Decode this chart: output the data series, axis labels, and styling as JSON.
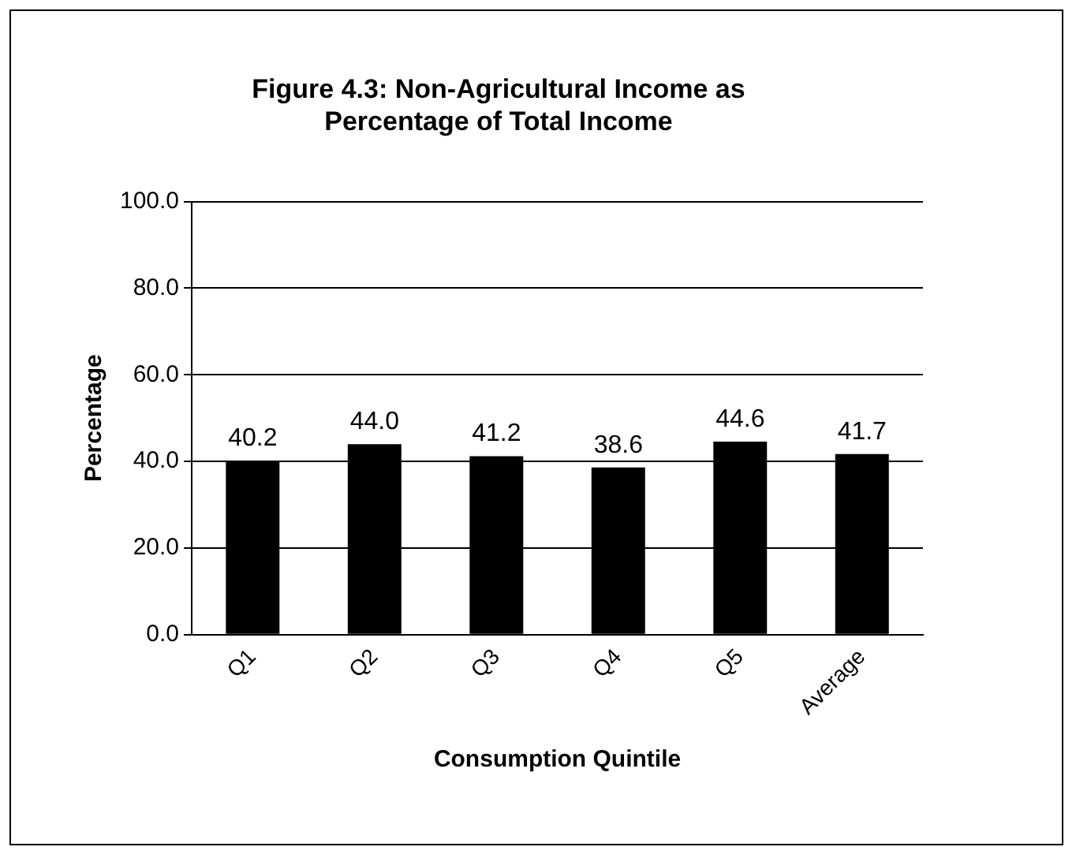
{
  "chart_data": {
    "type": "bar",
    "title": "Figure 4.3: Non-Agricultural Income as Percentage of Total Income",
    "xlabel": "Consumption Quintile",
    "ylabel": "Percentage",
    "categories": [
      "Q1",
      "Q2",
      "Q3",
      "Q4",
      "Q5",
      "Average"
    ],
    "values": [
      40.2,
      44.0,
      41.2,
      38.6,
      44.6,
      41.7
    ],
    "color": "#000000",
    "ylim": [
      0,
      100
    ],
    "yticks": [
      {
        "value": 0,
        "label": "0.0"
      },
      {
        "value": 20,
        "label": "20.0"
      },
      {
        "value": 40,
        "label": "40.0"
      },
      {
        "value": 60,
        "label": "60.0"
      },
      {
        "value": 80,
        "label": "80.0"
      },
      {
        "value": 100,
        "label": "100.0"
      }
    ],
    "value_labels": [
      "40.2",
      "44.0",
      "41.2",
      "38.6",
      "44.6",
      "41.7"
    ],
    "grid": "y",
    "legend": false
  }
}
